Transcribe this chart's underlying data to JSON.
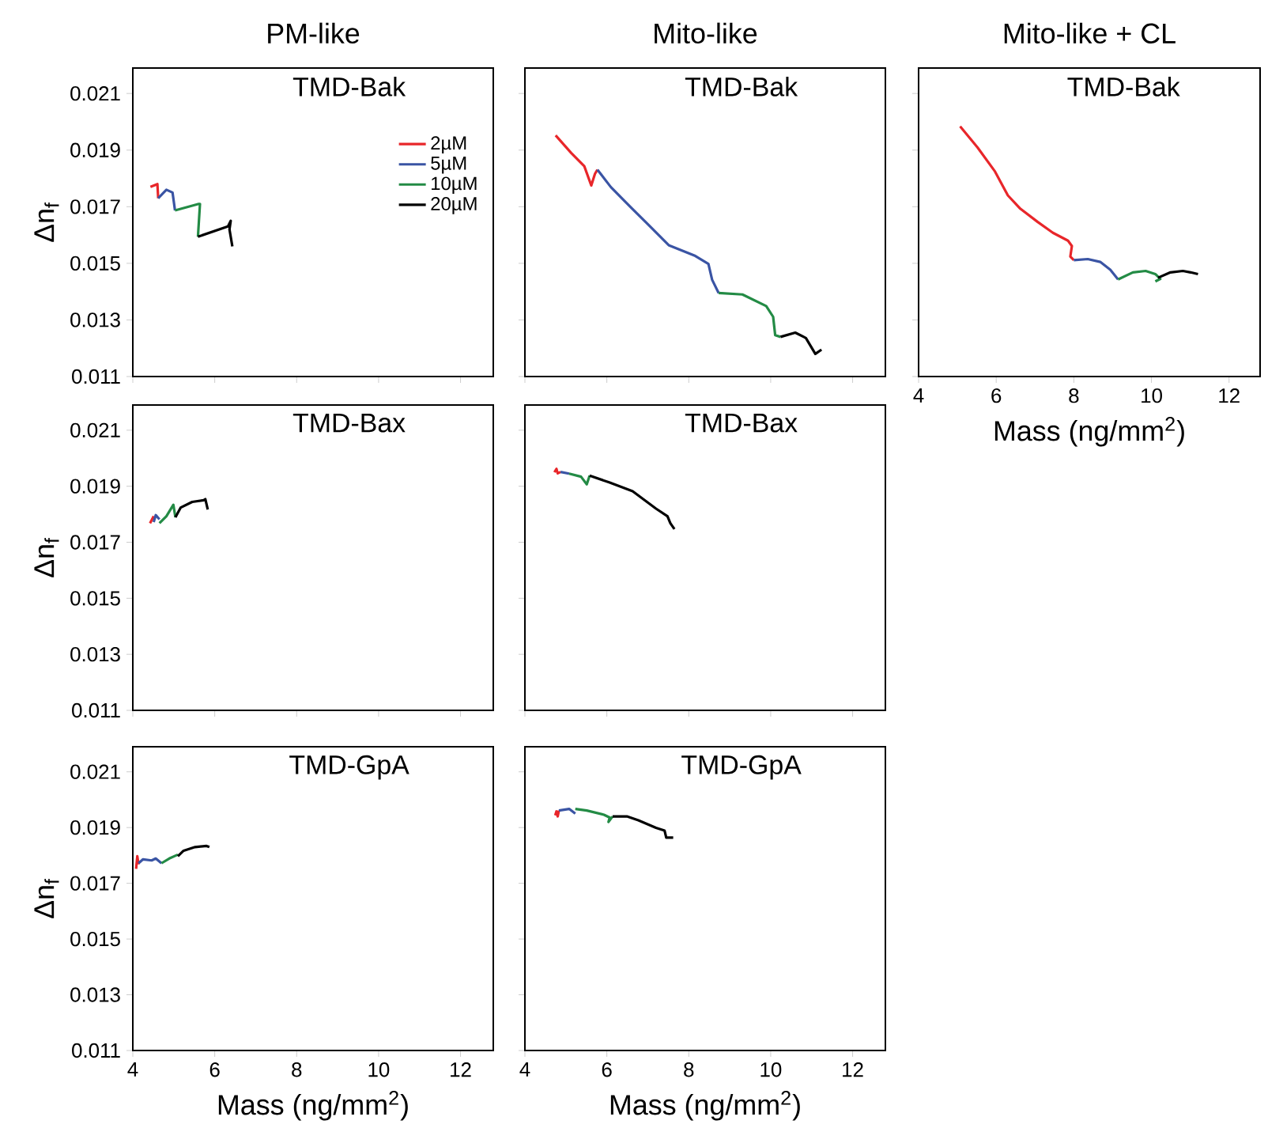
{
  "chart_data": [
    {
      "type": "line",
      "title": "PM-like",
      "subtitle": "TMD-Bak",
      "ylabel": "Δn$_{f}$",
      "xlim": [
        4,
        12.8
      ],
      "ylim": [
        0.011,
        0.0219
      ],
      "xticks": [
        4,
        6,
        8,
        10,
        12
      ],
      "yticks": [
        0.011,
        0.013,
        0.015,
        0.017,
        0.019,
        0.021
      ],
      "tick_labels": "y",
      "legend": "top right",
      "series": [
        {
          "name": "2µM",
          "color": "#e8262a",
          "x": [
            4.43,
            4.6,
            4.62
          ],
          "values": [
            0.0177,
            0.0178,
            0.0173
          ]
        },
        {
          "name": "5µM",
          "color": "#3a54a4",
          "x": [
            4.62,
            4.82,
            4.97,
            5.03
          ],
          "values": [
            0.0173,
            0.0176,
            0.0175,
            0.01687
          ]
        },
        {
          "name": "10µM",
          "color": "#238b45",
          "x": [
            5.03,
            5.61,
            5.64,
            5.59
          ],
          "values": [
            0.01687,
            0.0171,
            0.0171,
            0.01594
          ]
        },
        {
          "name": "20µM",
          "color": "#000000",
          "x": [
            5.59,
            6.32,
            6.39,
            6.36,
            6.43
          ],
          "values": [
            0.01594,
            0.0163,
            0.0165,
            0.0162,
            0.0156
          ]
        }
      ]
    },
    {
      "type": "line",
      "title": "Mito-like",
      "subtitle": "TMD-Bak",
      "xlim": [
        4,
        12.8
      ],
      "ylim": [
        0.011,
        0.0219
      ],
      "xticks": [
        4,
        6,
        8,
        10,
        12
      ],
      "yticks": [
        0.011,
        0.013,
        0.015,
        0.017,
        0.019,
        0.021
      ],
      "tick_labels": false,
      "series": [
        {
          "color": "#e8262a",
          "x": [
            4.75,
            5.13,
            5.45,
            5.62,
            5.71,
            5.77
          ],
          "values": [
            0.01952,
            0.0189,
            0.01843,
            0.01775,
            0.01816,
            0.01831
          ]
        },
        {
          "color": "#3a54a4",
          "x": [
            5.77,
            6.1,
            6.61,
            7.0,
            7.51,
            8.16,
            8.48,
            8.57,
            8.73
          ],
          "values": [
            0.01831,
            0.01769,
            0.01694,
            0.01638,
            0.01564,
            0.01526,
            0.01498,
            0.01442,
            0.01395
          ]
        },
        {
          "color": "#238b45",
          "x": [
            8.73,
            9.31,
            9.89,
            10.06,
            10.11,
            10.24
          ],
          "values": [
            0.01395,
            0.0139,
            0.01349,
            0.01311,
            0.01246,
            0.0124
          ]
        },
        {
          "color": "#000000",
          "x": [
            10.24,
            10.6,
            10.86,
            11.09,
            11.24
          ],
          "values": [
            0.0124,
            0.01255,
            0.01236,
            0.0118,
            0.01195
          ]
        }
      ]
    },
    {
      "type": "line",
      "title": "Mito-like + CL",
      "subtitle": "TMD-Bak",
      "xlabel": "Mass (ng/mm$^{2}$)",
      "xlim": [
        4,
        12.8
      ],
      "ylim": [
        0.011,
        0.0219
      ],
      "xticks": [
        4,
        6,
        8,
        10,
        12
      ],
      "yticks": [
        0.011,
        0.013,
        0.015,
        0.017,
        0.019,
        0.021
      ],
      "tick_labels": "x",
      "series": [
        {
          "color": "#e8262a",
          "x": [
            5.07,
            5.52,
            5.97,
            6.3,
            6.62,
            7.07,
            7.46,
            7.85,
            7.95,
            7.91,
            8.0
          ],
          "values": [
            0.01984,
            0.01909,
            0.01824,
            0.0174,
            0.01693,
            0.01646,
            0.01608,
            0.0158,
            0.01561,
            0.01524,
            0.01511
          ]
        },
        {
          "color": "#3a54a4",
          "x": [
            8.0,
            8.36,
            8.68,
            8.94,
            9.14
          ],
          "values": [
            0.01511,
            0.01515,
            0.01505,
            0.01477,
            0.01443
          ]
        },
        {
          "color": "#238b45",
          "x": [
            9.14,
            9.52,
            9.85,
            10.1,
            10.23,
            10.1
          ],
          "values": [
            0.01443,
            0.01468,
            0.01473,
            0.01462,
            0.01445,
            0.01436
          ]
        },
        {
          "color": "#000000",
          "x": [
            10.17,
            10.49,
            10.81,
            11.01,
            11.2
          ],
          "values": [
            0.01449,
            0.01468,
            0.01473,
            0.01468,
            0.01462
          ]
        }
      ]
    },
    {
      "type": "line",
      "subtitle": "TMD-Bax",
      "ylabel": "Δn$_{f}$",
      "xlim": [
        4,
        12.8
      ],
      "ylim": [
        0.011,
        0.0219
      ],
      "xticks": [
        4,
        6,
        8,
        10,
        12
      ],
      "yticks": [
        0.011,
        0.013,
        0.015,
        0.017,
        0.019,
        0.021
      ],
      "tick_labels": "y",
      "series": [
        {
          "color": "#e8262a",
          "x": [
            4.42,
            4.51
          ],
          "values": [
            0.01768,
            0.01793
          ]
        },
        {
          "color": "#3a54a4",
          "x": [
            4.51,
            4.56,
            4.65
          ],
          "values": [
            0.01772,
            0.01797,
            0.01782
          ]
        },
        {
          "color": "#238b45",
          "x": [
            4.65,
            4.82,
            4.99,
            5.04
          ],
          "values": [
            0.01768,
            0.01793,
            0.01834,
            0.01789
          ]
        },
        {
          "color": "#000000",
          "x": [
            5.04,
            5.17,
            5.45,
            5.73,
            5.77,
            5.83
          ],
          "values": [
            0.01789,
            0.01824,
            0.01844,
            0.0185,
            0.01854,
            0.01817
          ]
        }
      ]
    },
    {
      "type": "line",
      "subtitle": "TMD-Bax",
      "xlim": [
        4,
        12.8
      ],
      "ylim": [
        0.011,
        0.0219
      ],
      "xticks": [
        4,
        6,
        8,
        10,
        12
      ],
      "yticks": [
        0.011,
        0.013,
        0.015,
        0.017,
        0.019,
        0.021
      ],
      "tick_labels": false,
      "series": [
        {
          "color": "#e8262a",
          "x": [
            4.72,
            4.77,
            4.8,
            4.87
          ],
          "values": [
            0.0195,
            0.01962,
            0.01946,
            0.01951
          ]
        },
        {
          "color": "#3a54a4",
          "x": [
            4.87,
            5.08
          ],
          "values": [
            0.01951,
            0.01945
          ]
        },
        {
          "color": "#238b45",
          "x": [
            5.08,
            5.37,
            5.51,
            5.58
          ],
          "values": [
            0.01945,
            0.01934,
            0.01907,
            0.01938
          ]
        },
        {
          "color": "#000000",
          "x": [
            5.58,
            6.07,
            6.63,
            7.2,
            7.48,
            7.55,
            7.65
          ],
          "values": [
            0.01938,
            0.01913,
            0.01882,
            0.0182,
            0.01793,
            0.01768,
            0.01747
          ]
        }
      ]
    },
    {
      "type": "line",
      "subtitle": "TMD-GpA",
      "xlabel": "Mass (ng/mm$^{2}$)",
      "ylabel": "Δn$_{f}$",
      "xlim": [
        4,
        12.8
      ],
      "ylim": [
        0.011,
        0.0219
      ],
      "xticks": [
        4,
        6,
        8,
        10,
        12
      ],
      "yticks": [
        0.011,
        0.013,
        0.015,
        0.017,
        0.019,
        0.021
      ],
      "series": [
        {
          "color": "#e8262a",
          "x": [
            4.08,
            4.11,
            4.14
          ],
          "values": [
            0.01752,
            0.01797,
            0.01768
          ]
        },
        {
          "color": "#3a54a4",
          "x": [
            4.14,
            4.25,
            4.46,
            4.56,
            4.7
          ],
          "values": [
            0.01772,
            0.01786,
            0.01782,
            0.01789,
            0.01772
          ]
        },
        {
          "color": "#238b45",
          "x": [
            4.7,
            4.89,
            5.1
          ],
          "values": [
            0.01772,
            0.01789,
            0.01803
          ]
        },
        {
          "color": "#000000",
          "x": [
            5.1,
            5.24,
            5.52,
            5.8,
            5.87
          ],
          "values": [
            0.01797,
            0.01817,
            0.0183,
            0.01834,
            0.0183
          ]
        }
      ]
    },
    {
      "type": "line",
      "subtitle": "TMD-GpA",
      "xlabel": "Mass (ng/mm$^{2}$)",
      "xlim": [
        4,
        12.8
      ],
      "ylim": [
        0.011,
        0.0219
      ],
      "xticks": [
        4,
        6,
        8,
        10,
        12
      ],
      "yticks": [
        0.011,
        0.013,
        0.015,
        0.017,
        0.019,
        0.021
      ],
      "tick_labels": "x",
      "series": [
        {
          "color": "#e8262a",
          "x": [
            4.74,
            4.77,
            4.8,
            4.83
          ],
          "values": [
            0.01944,
            0.01958,
            0.0194,
            0.01961
          ]
        },
        {
          "color": "#3a54a4",
          "x": [
            4.83,
            5.08,
            5.23
          ],
          "values": [
            0.01961,
            0.01967,
            0.0195
          ]
        },
        {
          "color": "#238b45",
          "x": [
            5.23,
            5.51,
            5.93,
            6.07,
            6.04,
            6.14
          ],
          "values": [
            0.01967,
            0.01961,
            0.01946,
            0.01936,
            0.0192,
            0.0194
          ]
        },
        {
          "color": "#000000",
          "x": [
            6.14,
            6.49,
            6.77,
            7.2,
            7.41,
            7.45,
            7.62
          ],
          "values": [
            0.0194,
            0.0194,
            0.01926,
            0.01899,
            0.01889,
            0.01864,
            0.01864
          ]
        }
      ]
    }
  ]
}
